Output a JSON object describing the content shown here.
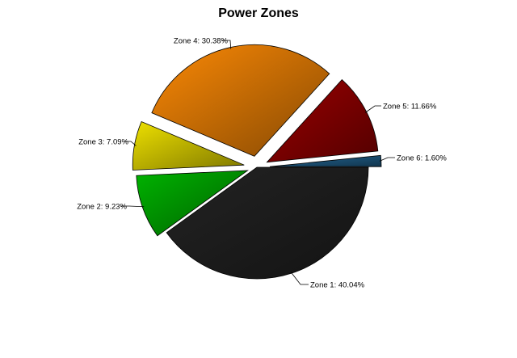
{
  "chart_data": {
    "type": "pie",
    "title": "Power Zones",
    "exploded": true,
    "slices": [
      {
        "name": "Zone 1",
        "value": 40.04,
        "label": "Zone 1: 40.04%",
        "color": "#1f1f1f"
      },
      {
        "name": "Zone 2",
        "value": 9.23,
        "label": "Zone 2: 9.23%",
        "color": "#00a000"
      },
      {
        "name": "Zone 3",
        "value": 7.09,
        "label": "Zone 3: 7.09%",
        "color": "#d4c800"
      },
      {
        "name": "Zone 4",
        "value": 30.38,
        "label": "Zone 4: 30.38%",
        "color": "#e07a05"
      },
      {
        "name": "Zone 5",
        "value": 11.66,
        "label": "Zone 5: 11.66%",
        "color": "#8a0000"
      },
      {
        "name": "Zone 6",
        "value": 1.6,
        "label": "Zone 6: 1.60%",
        "color": "#1e5a82"
      }
    ]
  }
}
